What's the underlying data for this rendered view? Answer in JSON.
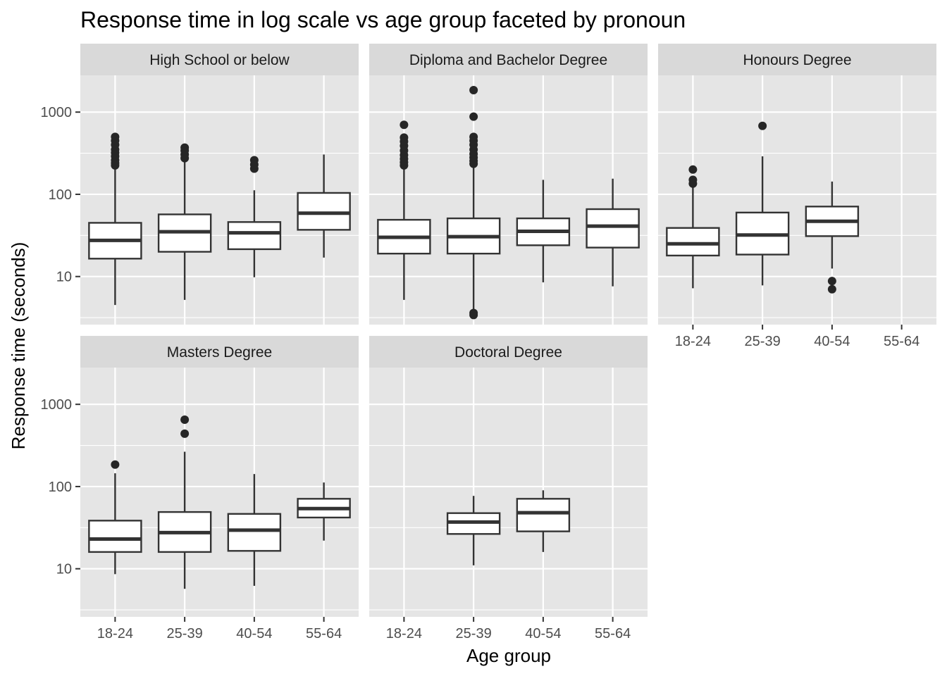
{
  "chart_data": {
    "type": "boxplot",
    "title": "Response time in log scale vs age group faceted by pronoun",
    "xlabel": "Age group",
    "ylabel": "Response time (seconds)",
    "y_scale": "log10",
    "ylim": [
      2.6,
      2800
    ],
    "y_ticks": [
      10,
      100,
      1000
    ],
    "y_tick_labels": [
      "10",
      "100",
      "1000"
    ],
    "categories": [
      "18-24",
      "25-39",
      "40-54",
      "55-64"
    ],
    "colors": {
      "panel_bg": "#e5e5e5",
      "grid": "#ffffff",
      "strip_bg": "#d9d9d9",
      "box_fill": "#ffffff",
      "box_line": "#333333",
      "outlier": "#262626"
    },
    "facets": [
      {
        "label": "High School or below",
        "boxes": [
          {
            "category": "18-24",
            "whisker_low": 4.5,
            "q1": 16.5,
            "median": 27.5,
            "q3": 45,
            "whisker_high": 210,
            "outliers": [
              225,
              240,
              260,
              290,
              320,
              350,
              400,
              450,
              500
            ]
          },
          {
            "category": "25-39",
            "whisker_low": 5.2,
            "q1": 20,
            "median": 35,
            "q3": 57,
            "whisker_high": 250,
            "outliers": [
              275,
              305,
              340,
              370
            ]
          },
          {
            "category": "40-54",
            "whisker_low": 9.8,
            "q1": 21.5,
            "median": 34,
            "q3": 46,
            "whisker_high": 112,
            "outliers": [
              205,
              230,
              260
            ]
          },
          {
            "category": "55-64",
            "whisker_low": 17,
            "q1": 37,
            "median": 59,
            "q3": 104,
            "whisker_high": 305,
            "outliers": []
          }
        ]
      },
      {
        "label": "Diploma and Bachelor Degree",
        "boxes": [
          {
            "category": "18-24",
            "whisker_low": 5.2,
            "q1": 19,
            "median": 30,
            "q3": 49,
            "whisker_high": 210,
            "outliers": [
              225,
              245,
              270,
              300,
              340,
              390,
              440,
              490,
              700
            ]
          },
          {
            "category": "25-39",
            "whisker_low": 4.0,
            "q1": 19,
            "median": 30.5,
            "q3": 51,
            "whisker_high": 220,
            "outliers": [
              3.4,
              3.6,
              235,
              255,
              280,
              310,
              350,
              400,
              450,
              500,
              880,
              1850
            ]
          },
          {
            "category": "40-54",
            "whisker_low": 8.5,
            "q1": 24,
            "median": 35.5,
            "q3": 51,
            "whisker_high": 150,
            "outliers": []
          },
          {
            "category": "55-64",
            "whisker_low": 7.6,
            "q1": 22.5,
            "median": 41,
            "q3": 66,
            "whisker_high": 155,
            "outliers": []
          }
        ]
      },
      {
        "label": "Honours Degree",
        "boxes": [
          {
            "category": "18-24",
            "whisker_low": 7.2,
            "q1": 18,
            "median": 25,
            "q3": 39,
            "whisker_high": 125,
            "outliers": [
              135,
              150,
              200
            ]
          },
          {
            "category": "25-39",
            "whisker_low": 7.8,
            "q1": 18.5,
            "median": 32,
            "q3": 60,
            "whisker_high": 290,
            "outliers": [
              680
            ]
          },
          {
            "category": "40-54",
            "whisker_low": 12.5,
            "q1": 31,
            "median": 47,
            "q3": 71,
            "whisker_high": 143,
            "outliers": [
              7.0,
              8.8
            ]
          }
        ]
      },
      {
        "label": "Masters Degree",
        "boxes": [
          {
            "category": "18-24",
            "whisker_low": 8.6,
            "q1": 16,
            "median": 23,
            "q3": 38.5,
            "whisker_high": 145,
            "outliers": [
              185
            ]
          },
          {
            "category": "25-39",
            "whisker_low": 5.7,
            "q1": 16,
            "median": 27.5,
            "q3": 49,
            "whisker_high": 265,
            "outliers": [
              440,
              650
            ]
          },
          {
            "category": "40-54",
            "whisker_low": 6.2,
            "q1": 16.5,
            "median": 29.5,
            "q3": 46.5,
            "whisker_high": 142,
            "outliers": []
          },
          {
            "category": "55-64",
            "whisker_low": 22,
            "q1": 42,
            "median": 54,
            "q3": 71,
            "whisker_high": 112,
            "outliers": []
          }
        ]
      },
      {
        "label": "Doctoral Degree",
        "boxes": [
          {
            "category": "25-39",
            "whisker_low": 11,
            "q1": 26.5,
            "median": 37,
            "q3": 47.5,
            "whisker_high": 77,
            "outliers": []
          },
          {
            "category": "40-54",
            "whisker_low": 16,
            "q1": 28.5,
            "median": 48,
            "q3": 71,
            "whisker_high": 90,
            "outliers": []
          }
        ]
      }
    ]
  }
}
